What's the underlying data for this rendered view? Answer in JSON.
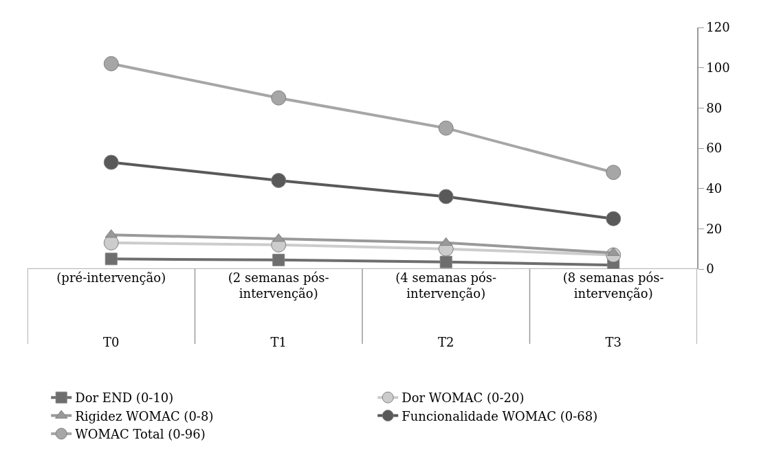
{
  "chart_data": {
    "type": "line",
    "categories": [
      "(pré-intervenção)\nT0",
      "(2 semanas pós-\nintervenção)\nT1",
      "(4 semanas pós-\nintervenção)\nT2",
      "(8 semanas pós-\nintervenção)\nT3"
    ],
    "series": [
      {
        "name": "Dor END (0-10)",
        "color": "#6e6e6e",
        "marker": "square",
        "values": [
          5,
          4.5,
          3.5,
          2
        ]
      },
      {
        "name": "Dor WOMAC (0-20)",
        "color": "#cccccc",
        "marker": "circle",
        "values": [
          13,
          12,
          10,
          7
        ]
      },
      {
        "name": "Rigidez WOMAC (0-8)",
        "color": "#999999",
        "marker": "triangle",
        "values": [
          17,
          15,
          13,
          8
        ]
      },
      {
        "name": "Funcionalidade WOMAC (0-68)",
        "color": "#595959",
        "marker": "circle",
        "values": [
          53,
          44,
          36,
          25
        ]
      },
      {
        "name": "WOMAC Total (0-96)",
        "color": "#a6a6a6",
        "marker": "circle",
        "values": [
          102,
          85,
          70,
          48
        ]
      }
    ],
    "ylim": [
      0,
      120
    ],
    "yticks": [
      0,
      20,
      40,
      60,
      80,
      100,
      120
    ],
    "grid": false,
    "legend": "bottom",
    "line_style": "solid"
  }
}
